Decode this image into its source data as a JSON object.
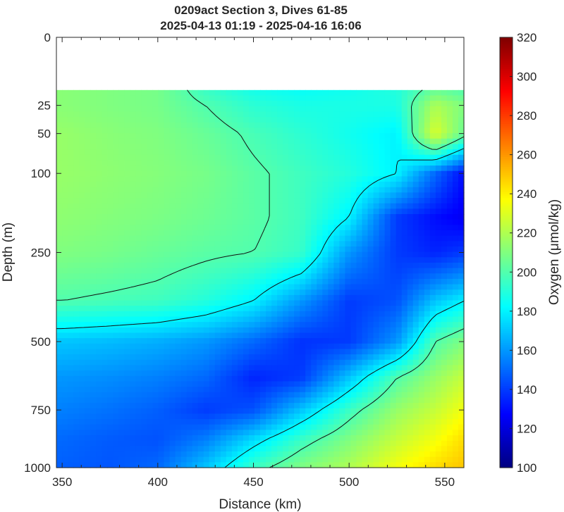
{
  "chart_data": {
    "type": "heatmap",
    "title": "0209act Section 3, Dives 61-85",
    "subtitle": "2025-04-13 01:19 - 2025-04-16 16:06",
    "xlabel": "Distance (km)",
    "ylabel": "Depth (m)",
    "colorbar_label": "Oxygen (μmol/kg)",
    "xlim": [
      347,
      560
    ],
    "xticks": [
      "350",
      "400",
      "450",
      "500",
      "550"
    ],
    "xtick_values": [
      350,
      400,
      450,
      500,
      550
    ],
    "y_scale": "square-root",
    "ylim": [
      0,
      1000
    ],
    "yticks": [
      "0",
      "25",
      "50",
      "100",
      "250",
      "500",
      "750",
      "1000"
    ],
    "ytick_values": [
      0,
      25,
      50,
      100,
      250,
      500,
      750,
      1000
    ],
    "clim": [
      100,
      320
    ],
    "cticks": [
      "100",
      "120",
      "140",
      "160",
      "180",
      "200",
      "220",
      "240",
      "260",
      "280",
      "300",
      "320"
    ],
    "ctick_values": [
      100,
      120,
      140,
      160,
      180,
      200,
      220,
      240,
      260,
      280,
      300,
      320
    ],
    "colormap": "jet",
    "data_top_depth": 15,
    "x": [
      350,
      375,
      400,
      425,
      450,
      475,
      500,
      525,
      545,
      560
    ],
    "depth": [
      15,
      25,
      50,
      100,
      175,
      250,
      375,
      500,
      625,
      750,
      875,
      1000
    ],
    "oxygen": [
      [
        212,
        210,
        208,
        195,
        187,
        184,
        186,
        190,
        205,
        200
      ],
      [
        212,
        210,
        208,
        200,
        192,
        188,
        188,
        188,
        220,
        210
      ],
      [
        215,
        212,
        210,
        205,
        198,
        192,
        186,
        180,
        230,
        205
      ],
      [
        215,
        213,
        211,
        208,
        202,
        196,
        190,
        180,
        150,
        130
      ],
      [
        213,
        211,
        209,
        206,
        202,
        196,
        180,
        140,
        130,
        125
      ],
      [
        210,
        208,
        205,
        202,
        200,
        194,
        160,
        140,
        135,
        140
      ],
      [
        200,
        198,
        196,
        190,
        180,
        160,
        140,
        145,
        170,
        180
      ],
      [
        170,
        168,
        165,
        160,
        150,
        138,
        140,
        160,
        200,
        210
      ],
      [
        160,
        158,
        155,
        150,
        135,
        140,
        170,
        200,
        215,
        225
      ],
      [
        155,
        152,
        148,
        140,
        145,
        170,
        195,
        215,
        225,
        235
      ],
      [
        150,
        147,
        145,
        155,
        175,
        195,
        210,
        225,
        235,
        245
      ],
      [
        148,
        146,
        150,
        170,
        195,
        210,
        220,
        235,
        245,
        250
      ]
    ],
    "contour_levels": [
      180,
      200
    ]
  }
}
